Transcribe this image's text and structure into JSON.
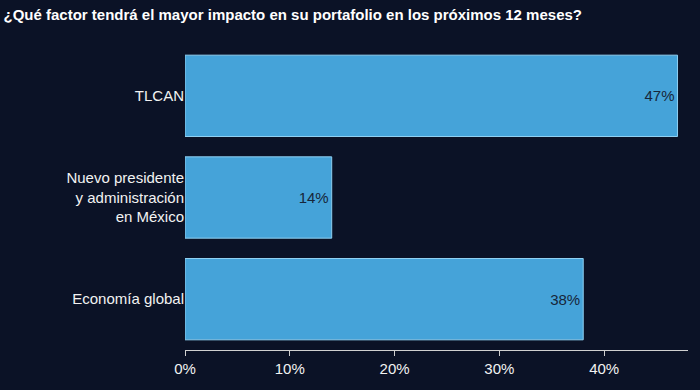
{
  "chart_data": {
    "type": "bar",
    "title": "¿Qué factor tendrá el mayor impacto en su portafolio en los próximos 12 meses?",
    "orientation": "horizontal",
    "categories": [
      "TLCAN",
      "Nuevo presidente\ny administración\nen México",
      "Economía global"
    ],
    "values": [
      47,
      14,
      38
    ],
    "value_labels": [
      "47%",
      "14%",
      "38%"
    ],
    "data_labels": true,
    "color": "#45a3d9",
    "xlim": [
      0,
      48
    ],
    "xticks": [
      {
        "value": 0,
        "label": "0%"
      },
      {
        "value": 10,
        "label": "10%"
      },
      {
        "value": 20,
        "label": "20%"
      },
      {
        "value": 30,
        "label": "30%"
      },
      {
        "value": 40,
        "label": "40%"
      }
    ],
    "grid": false
  }
}
